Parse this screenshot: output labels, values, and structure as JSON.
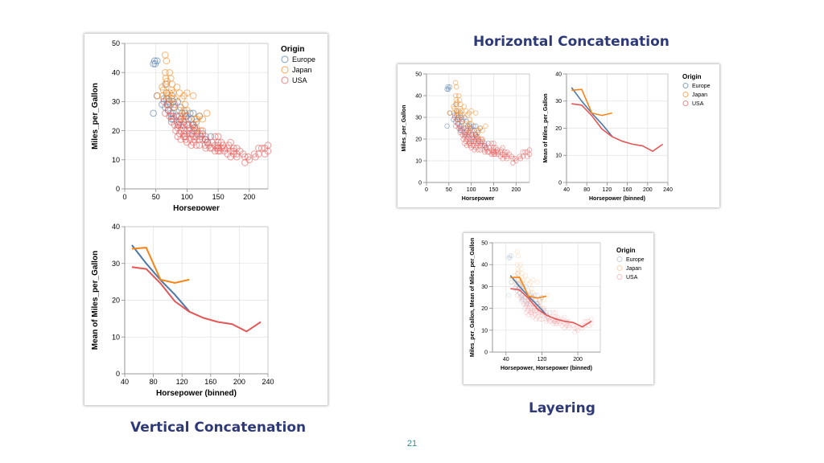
{
  "slide": {
    "title_horizontal": "Horizontal Concatenation",
    "title_vertical": "Vertical Concatenation",
    "title_layering": "Layering",
    "page_number": "21"
  },
  "colors": {
    "Europe": "#4c78a8",
    "Japan": "#f58518",
    "USA": "#e45756",
    "text": "#2e3a78"
  },
  "legend": {
    "title": "Origin",
    "items": [
      "Europe",
      "Japan",
      "USA"
    ]
  },
  "chart_data": [
    {
      "id": "vertical-scatter",
      "type": "scatter",
      "marks": "open-circle",
      "xlabel": "Horsepower",
      "ylabel": "Miles_per_Gallon",
      "xlim": [
        0,
        230
      ],
      "ylim": [
        0,
        50
      ],
      "xticks": [
        0,
        50,
        100,
        150,
        200
      ],
      "yticks": [
        0,
        10,
        20,
        30,
        40,
        50
      ],
      "grid": true,
      "legend": "top-right",
      "series": [
        {
          "name": "Europe",
          "points": [
            [
              46,
              26
            ],
            [
              46,
              43
            ],
            [
              48,
              44
            ],
            [
              49,
              43
            ],
            [
              52,
              44
            ],
            [
              52,
              32
            ],
            [
              60,
              29
            ],
            [
              63,
              31
            ],
            [
              65,
              28
            ],
            [
              67,
              31
            ],
            [
              67,
              33
            ],
            [
              67,
              36
            ],
            [
              69,
              29
            ],
            [
              70,
              27
            ],
            [
              71,
              30
            ],
            [
              74,
              26
            ],
            [
              74,
              29
            ],
            [
              75,
              24
            ],
            [
              76,
              32
            ],
            [
              77,
              26
            ],
            [
              78,
              30
            ],
            [
              78,
              24
            ],
            [
              80,
              28
            ],
            [
              83,
              25
            ],
            [
              85,
              30
            ],
            [
              86,
              22
            ],
            [
              88,
              23
            ],
            [
              90,
              28
            ],
            [
              92,
              26
            ],
            [
              95,
              22
            ],
            [
              97,
              26
            ],
            [
              98,
              25
            ],
            [
              102,
              24
            ],
            [
              103,
              20
            ],
            [
              105,
              26
            ],
            [
              107,
              24
            ],
            [
              109,
              22
            ],
            [
              110,
              26
            ],
            [
              112,
              21
            ],
            [
              115,
              23
            ],
            [
              116,
              19
            ],
            [
              120,
              25
            ],
            [
              125,
              19
            ],
            [
              129,
              17
            ],
            [
              133,
              16
            ],
            [
              138,
              18
            ]
          ]
        },
        {
          "name": "Japan",
          "points": [
            [
              52,
              32
            ],
            [
              60,
              35
            ],
            [
              61,
              32
            ],
            [
              62,
              34
            ],
            [
              65,
              40
            ],
            [
              65,
              46
            ],
            [
              65,
              36
            ],
            [
              66,
              38
            ],
            [
              67,
              44
            ],
            [
              67,
              33
            ],
            [
              68,
              37
            ],
            [
              69,
              32
            ],
            [
              70,
              31
            ],
            [
              70,
              29
            ],
            [
              72,
              33
            ],
            [
              72,
              40
            ],
            [
              74,
              38
            ],
            [
              75,
              34
            ],
            [
              75,
              31
            ],
            [
              76,
              36
            ],
            [
              78,
              33
            ],
            [
              78,
              28
            ],
            [
              80,
              31
            ],
            [
              84,
              35
            ],
            [
              88,
              27
            ],
            [
              88,
              33
            ],
            [
              90,
              24
            ],
            [
              92,
              31
            ],
            [
              94,
              25
            ],
            [
              95,
              32
            ],
            [
              95,
              27
            ],
            [
              97,
              29
            ],
            [
              97,
              24
            ],
            [
              100,
              27
            ],
            [
              100,
              33
            ],
            [
              110,
              22
            ],
            [
              110,
              32
            ],
            [
              113,
              24
            ],
            [
              115,
              21
            ],
            [
              116,
              24
            ],
            [
              120,
              25
            ],
            [
              122,
              20
            ],
            [
              125,
              24
            ],
            [
              132,
              26
            ]
          ]
        },
        {
          "name": "USA",
          "points": [
            [
              63,
              30
            ],
            [
              65,
              26
            ],
            [
              68,
              29
            ],
            [
              70,
              27
            ],
            [
              72,
              25
            ],
            [
              75,
              25
            ],
            [
              75,
              23
            ],
            [
              78,
              25
            ],
            [
              80,
              22
            ],
            [
              80,
              29
            ],
            [
              82,
              20
            ],
            [
              84,
              23
            ],
            [
              85,
              21
            ],
            [
              85,
              18
            ],
            [
              86,
              22
            ],
            [
              88,
              19
            ],
            [
              88,
              25
            ],
            [
              90,
              24
            ],
            [
              90,
              22
            ],
            [
              90,
              20
            ],
            [
              90,
              17
            ],
            [
              92,
              21
            ],
            [
              95,
              19
            ],
            [
              95,
              23
            ],
            [
              95,
              18
            ],
            [
              96,
              20
            ],
            [
              97,
              18
            ],
            [
              98,
              17
            ],
            [
              100,
              22
            ],
            [
              100,
              19
            ],
            [
              100,
              16
            ],
            [
              100,
              25
            ],
            [
              102,
              22
            ],
            [
              105,
              17
            ],
            [
              105,
              19
            ],
            [
              105,
              21
            ],
            [
              107,
              15
            ],
            [
              108,
              19
            ],
            [
              110,
              18
            ],
            [
              110,
              20
            ],
            [
              110,
              16
            ],
            [
              110,
              22
            ],
            [
              112,
              17
            ],
            [
              112,
              21
            ],
            [
              115,
              18
            ],
            [
              115,
              15
            ],
            [
              116,
              20
            ],
            [
              120,
              17
            ],
            [
              120,
              19
            ],
            [
              120,
              15
            ],
            [
              122,
              18
            ],
            [
              125,
              17
            ],
            [
              125,
              20
            ],
            [
              129,
              15
            ],
            [
              130,
              17
            ],
            [
              130,
              18
            ],
            [
              130,
              14
            ],
            [
              133,
              16
            ],
            [
              135,
              15
            ],
            [
              137,
              14
            ],
            [
              140,
              16
            ],
            [
              140,
              14
            ],
            [
              145,
              13
            ],
            [
              145,
              15
            ],
            [
              145,
              18
            ],
            [
              148,
              14
            ],
            [
              150,
              14
            ],
            [
              150,
              13
            ],
            [
              150,
              16
            ],
            [
              150,
              18
            ],
            [
              150,
              15
            ],
            [
              153,
              13
            ],
            [
              155,
              14
            ],
            [
              155,
              16
            ],
            [
              158,
              15
            ],
            [
              160,
              14
            ],
            [
              160,
              13
            ],
            [
              165,
              14
            ],
            [
              165,
              12
            ],
            [
              167,
              15
            ],
            [
              170,
              13
            ],
            [
              170,
              16
            ],
            [
              170,
              11
            ],
            [
              175,
              13
            ],
            [
              175,
              14
            ],
            [
              175,
              12
            ],
            [
              180,
              12
            ],
            [
              180,
              14
            ],
            [
              180,
              11
            ],
            [
              185,
              13
            ],
            [
              190,
              12
            ],
            [
              193,
              9
            ],
            [
              193,
              11
            ],
            [
              198,
              11
            ],
            [
              200,
              10
            ],
            [
              208,
              12
            ],
            [
              210,
              11
            ],
            [
              215,
              14
            ],
            [
              215,
              12
            ],
            [
              220,
              14
            ],
            [
              225,
              12
            ],
            [
              225,
              14
            ],
            [
              230,
              13
            ],
            [
              230,
              15
            ]
          ]
        }
      ]
    },
    {
      "id": "vertical-line",
      "type": "line",
      "xlabel": "Horsepower (binned)",
      "ylabel": "Mean of Miles_per_Gallon",
      "xlim": [
        40,
        240
      ],
      "ylim": [
        0,
        40
      ],
      "xticks": [
        40,
        80,
        120,
        160,
        200,
        240
      ],
      "yticks": [
        0,
        10,
        20,
        30,
        40
      ],
      "grid": true,
      "series": [
        {
          "name": "Europe",
          "x": [
            50,
            70,
            90,
            110,
            130
          ],
          "y": [
            35,
            30,
            25.5,
            21.5,
            17
          ]
        },
        {
          "name": "Japan",
          "x": [
            50,
            70,
            90,
            110,
            130
          ],
          "y": [
            34,
            34.3,
            25.6,
            24.7,
            25.6
          ]
        },
        {
          "name": "USA",
          "x": [
            50,
            70,
            90,
            110,
            130,
            150,
            170,
            190,
            210,
            230
          ],
          "y": [
            29,
            28.5,
            24.6,
            19.7,
            16.9,
            15.2,
            14.1,
            13.5,
            11.5,
            14.1
          ]
        }
      ]
    }
  ],
  "chart_labels": {
    "scatter_x": "Horsepower",
    "scatter_y": "Miles_per_Gallon",
    "line_x": "Horsepower (binned)",
    "line_y": "Mean of Miles_per_Gallon",
    "layer_x": "Horsepower, Horsepower (binned)",
    "layer_y": "Miles_per_Gallon, Mean of Miles_per_Gallon"
  }
}
